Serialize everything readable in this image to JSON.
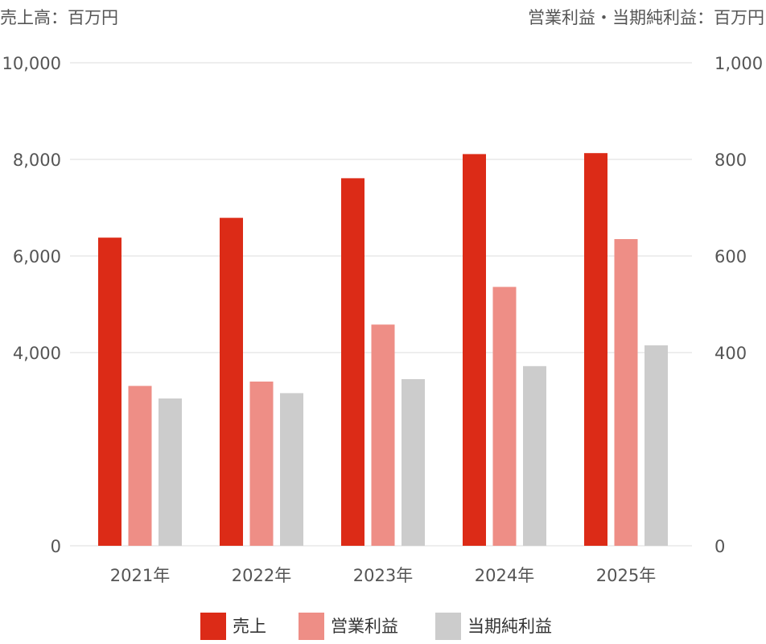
{
  "chart_data": {
    "type": "bar",
    "left_axis_title": "売上高：百万円",
    "right_axis_title": "営業利益・当期純利益：百万円",
    "categories": [
      "2021年",
      "2022年",
      "2023年",
      "2024年",
      "2025年"
    ],
    "left_ylim": [
      0,
      10000
    ],
    "right_ylim": [
      0,
      1000
    ],
    "left_ticks": [
      "0",
      "4,000",
      "6,000",
      "8,000",
      "10,000"
    ],
    "right_ticks": [
      "0",
      "400",
      "600",
      "800",
      "1,000"
    ],
    "grid": true,
    "legend_position": "bottom",
    "series": [
      {
        "name": "売上",
        "axis": "left",
        "color": "#dc2b17",
        "values": [
          6380,
          6790,
          7610,
          8110,
          8130
        ]
      },
      {
        "name": "営業利益",
        "axis": "right",
        "color": "#ee8e86",
        "values": [
          331,
          340,
          458,
          536,
          635
        ]
      },
      {
        "name": "当期純利益",
        "axis": "right",
        "color": "#cccccc",
        "values": [
          305,
          316,
          345,
          372,
          415
        ]
      }
    ]
  }
}
